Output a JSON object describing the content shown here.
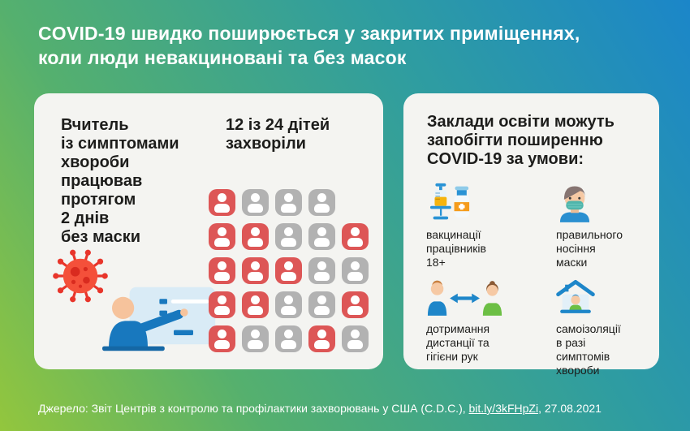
{
  "title": {
    "line1": "COVID-19 швидко поширюється у закритих приміщеннях,",
    "line2": "коли люди невакциновані та без масок"
  },
  "left_card": {
    "teacher_text": "Вчитель\nіз симптомами\nхвороби\nпрацював\nпротягом\n2 днів\nбез маски",
    "stat_text": "12 із 24 дітей\nзахворіли",
    "icons": [
      "coronavirus-icon",
      "teacher-at-board-illustration"
    ],
    "grid": {
      "sick_count": 12,
      "total_count": 24,
      "sick_color": "#dd5656",
      "healthy_color": "#b2b2b2",
      "rows": [
        [
          "sick",
          "healthy",
          "healthy",
          "healthy",
          null
        ],
        [
          "sick",
          "sick",
          "healthy",
          "healthy",
          "sick"
        ],
        [
          "sick",
          "sick",
          "sick",
          "healthy",
          "healthy"
        ],
        [
          "sick",
          "sick",
          "healthy",
          "healthy",
          "sick"
        ],
        [
          "sick",
          "healthy",
          "healthy",
          "sick",
          "healthy"
        ]
      ]
    }
  },
  "right_card": {
    "heading": "Заклади освіти можуть\nзапобігти поширенню\nCOVID-19 за умови:",
    "items": [
      {
        "icon": "vaccine-syringe-vial-icon",
        "label": "вакцинації\nпрацівників\n18+"
      },
      {
        "icon": "masked-person-icon",
        "label": "правильного\nносіння\nмаски"
      },
      {
        "icon": "physical-distance-icon",
        "label": "дотримання\nдистанції та\nгігієни рук"
      },
      {
        "icon": "self-isolation-home-icon",
        "label": "самоізоляції\nв разі\nсимптомів\nхвороби"
      }
    ]
  },
  "footer": {
    "prefix": "Джерело: Звіт Центрів з контролю та профілактики захворювань у США (C.D.C.), ",
    "link": "bit.ly/3kFHpZi",
    "suffix": ", 27.08.2021"
  },
  "palette": {
    "gradient_stops": [
      "#93c63d",
      "#55b06e",
      "#2f9da0",
      "#1b86c9"
    ],
    "card_bg": "#f4f4f1",
    "text_dark": "#1d1d1b",
    "blue_accent": "#1e86c9",
    "virus_red": "#f4503a"
  }
}
